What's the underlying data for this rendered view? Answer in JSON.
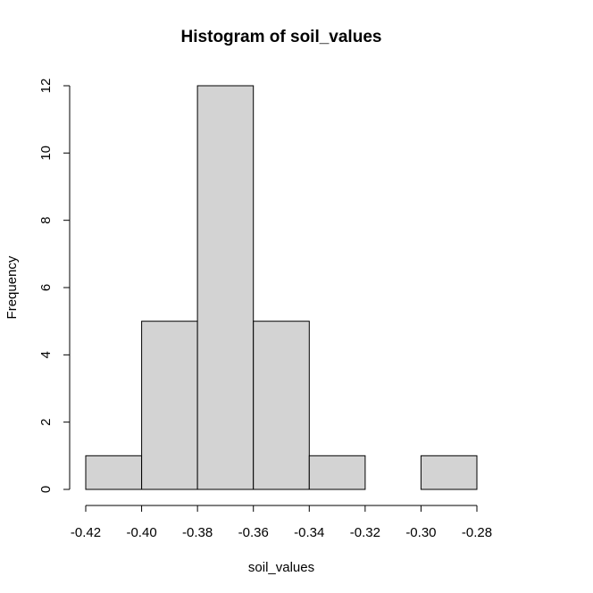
{
  "chart_data": {
    "type": "bar",
    "title": "Histogram of soil_values",
    "xlabel": "soil_values",
    "ylabel": "Frequency",
    "bins": [
      {
        "from": -0.42,
        "to": -0.4,
        "count": 1
      },
      {
        "from": -0.4,
        "to": -0.38,
        "count": 5
      },
      {
        "from": -0.38,
        "to": -0.36,
        "count": 12
      },
      {
        "from": -0.36,
        "to": -0.34,
        "count": 5
      },
      {
        "from": -0.34,
        "to": -0.32,
        "count": 1
      },
      {
        "from": -0.32,
        "to": -0.3,
        "count": 0
      },
      {
        "from": -0.3,
        "to": -0.28,
        "count": 1
      }
    ],
    "xlim": [
      -0.42,
      -0.28
    ],
    "ylim": [
      0,
      12
    ],
    "x_ticks": [
      "-0.42",
      "-0.40",
      "-0.38",
      "-0.36",
      "-0.34",
      "-0.32",
      "-0.30",
      "-0.28"
    ],
    "y_ticks": [
      "0",
      "2",
      "4",
      "6",
      "8",
      "10",
      "12"
    ],
    "grid": false,
    "bar_color": "#d3d3d3"
  }
}
